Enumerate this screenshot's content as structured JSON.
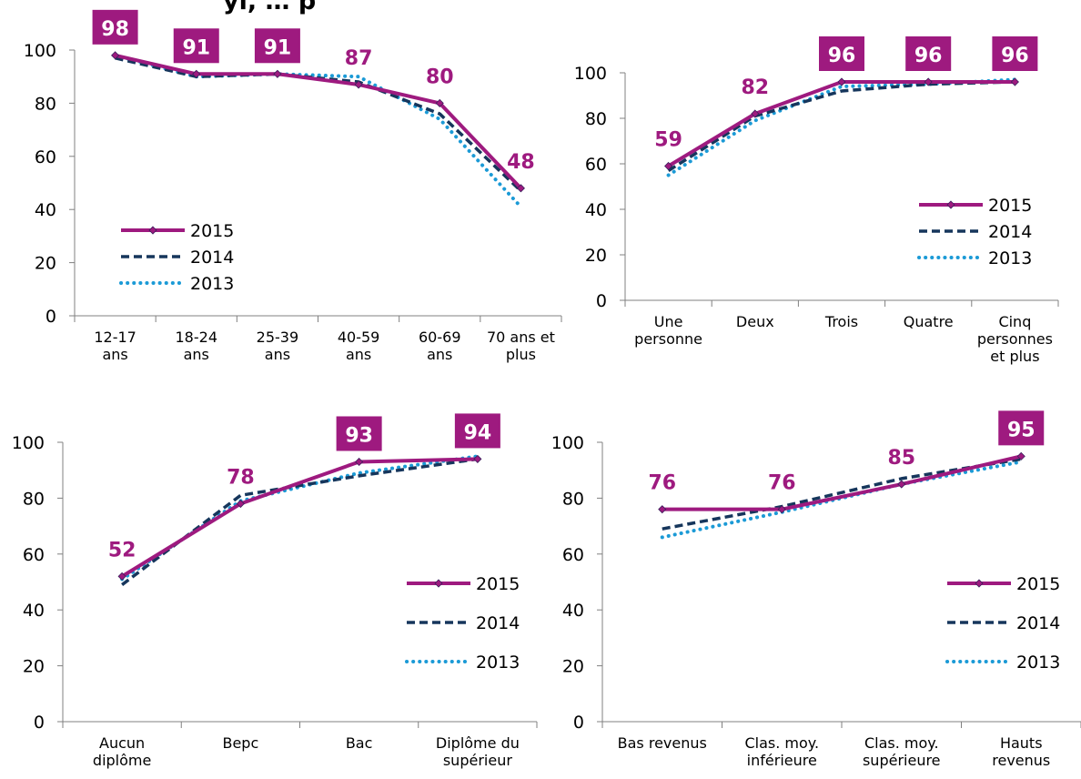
{
  "title_fragment": "yi, … p",
  "colors": {
    "2015": "#9e1a7f",
    "2014": "#16365c",
    "2013": "#1b9ad6",
    "badge_text": "#ffffff"
  },
  "chart_data": [
    {
      "type": "line",
      "categories": [
        [
          "12-17",
          "ans"
        ],
        [
          "18-24",
          "ans"
        ],
        [
          "25-39",
          "ans"
        ],
        [
          "40-59",
          "ans"
        ],
        [
          "60-69",
          "ans"
        ],
        [
          "70 ans et",
          "plus"
        ]
      ],
      "ylim": [
        0,
        100
      ],
      "yticks": [
        0,
        20,
        40,
        60,
        80,
        100
      ],
      "legend_position": "bottom-left",
      "series": [
        {
          "name": "2015",
          "values": [
            98,
            91,
            91,
            87,
            80,
            48
          ],
          "style": "solid"
        },
        {
          "name": "2014",
          "values": [
            97,
            90,
            91,
            88,
            76,
            47
          ],
          "style": "dashed"
        },
        {
          "name": "2013",
          "values": [
            98,
            90,
            91,
            90,
            74,
            41
          ],
          "style": "dotted"
        }
      ],
      "data_labels": [
        {
          "text": "98",
          "boxed": true
        },
        {
          "text": "91",
          "boxed": true
        },
        {
          "text": "91",
          "boxed": true
        },
        {
          "text": "87",
          "boxed": false
        },
        {
          "text": "80",
          "boxed": false
        },
        {
          "text": "48",
          "boxed": false
        }
      ]
    },
    {
      "type": "line",
      "categories": [
        [
          "Une",
          "personne"
        ],
        [
          "Deux"
        ],
        [
          "Trois"
        ],
        [
          "Quatre"
        ],
        [
          "Cinq",
          "personnes",
          "et plus"
        ]
      ],
      "ylim": [
        0,
        100
      ],
      "yticks": [
        0,
        20,
        40,
        60,
        80,
        100
      ],
      "legend_position": "right",
      "series": [
        {
          "name": "2015",
          "values": [
            59,
            82,
            96,
            96,
            96
          ],
          "style": "solid"
        },
        {
          "name": "2014",
          "values": [
            57,
            81,
            92,
            95,
            96
          ],
          "style": "dashed"
        },
        {
          "name": "2013",
          "values": [
            55,
            79,
            94,
            95,
            97
          ],
          "style": "dotted"
        }
      ],
      "data_labels": [
        {
          "text": "59",
          "boxed": false
        },
        {
          "text": "82",
          "boxed": false
        },
        {
          "text": "96",
          "boxed": true
        },
        {
          "text": "96",
          "boxed": true
        },
        {
          "text": "96",
          "boxed": true
        }
      ]
    },
    {
      "type": "line",
      "categories": [
        [
          "Aucun",
          "diplôme"
        ],
        [
          "Bepc"
        ],
        [
          "Bac"
        ],
        [
          "Diplôme du",
          "supérieur"
        ]
      ],
      "ylim": [
        0,
        100
      ],
      "yticks": [
        0,
        20,
        40,
        60,
        80,
        100
      ],
      "legend_position": "right",
      "series": [
        {
          "name": "2015",
          "values": [
            52,
            78,
            93,
            94
          ],
          "style": "solid"
        },
        {
          "name": "2014",
          "values": [
            49,
            81,
            88,
            94
          ],
          "style": "dashed"
        },
        {
          "name": "2013",
          "values": [
            51,
            79,
            89,
            95
          ],
          "style": "dotted"
        }
      ],
      "data_labels": [
        {
          "text": "52",
          "boxed": false
        },
        {
          "text": "78",
          "boxed": false
        },
        {
          "text": "93",
          "boxed": true
        },
        {
          "text": "94",
          "boxed": true
        }
      ]
    },
    {
      "type": "line",
      "categories": [
        [
          "Bas revenus"
        ],
        [
          "Clas. moy.",
          "inférieure"
        ],
        [
          "Clas. moy.",
          "supérieure"
        ],
        [
          "Hauts",
          "revenus"
        ]
      ],
      "ylim": [
        0,
        100
      ],
      "yticks": [
        0,
        20,
        40,
        60,
        80,
        100
      ],
      "legend_position": "right",
      "series": [
        {
          "name": "2015",
          "values": [
            76,
            76,
            85,
            95
          ],
          "style": "solid"
        },
        {
          "name": "2014",
          "values": [
            69,
            77,
            87,
            94
          ],
          "style": "dashed"
        },
        {
          "name": "2013",
          "values": [
            66,
            75,
            85,
            93
          ],
          "style": "dotted"
        }
      ],
      "data_labels": [
        {
          "text": "76",
          "boxed": false
        },
        {
          "text": "76",
          "boxed": false
        },
        {
          "text": "85",
          "boxed": false
        },
        {
          "text": "95",
          "boxed": true
        }
      ]
    }
  ]
}
